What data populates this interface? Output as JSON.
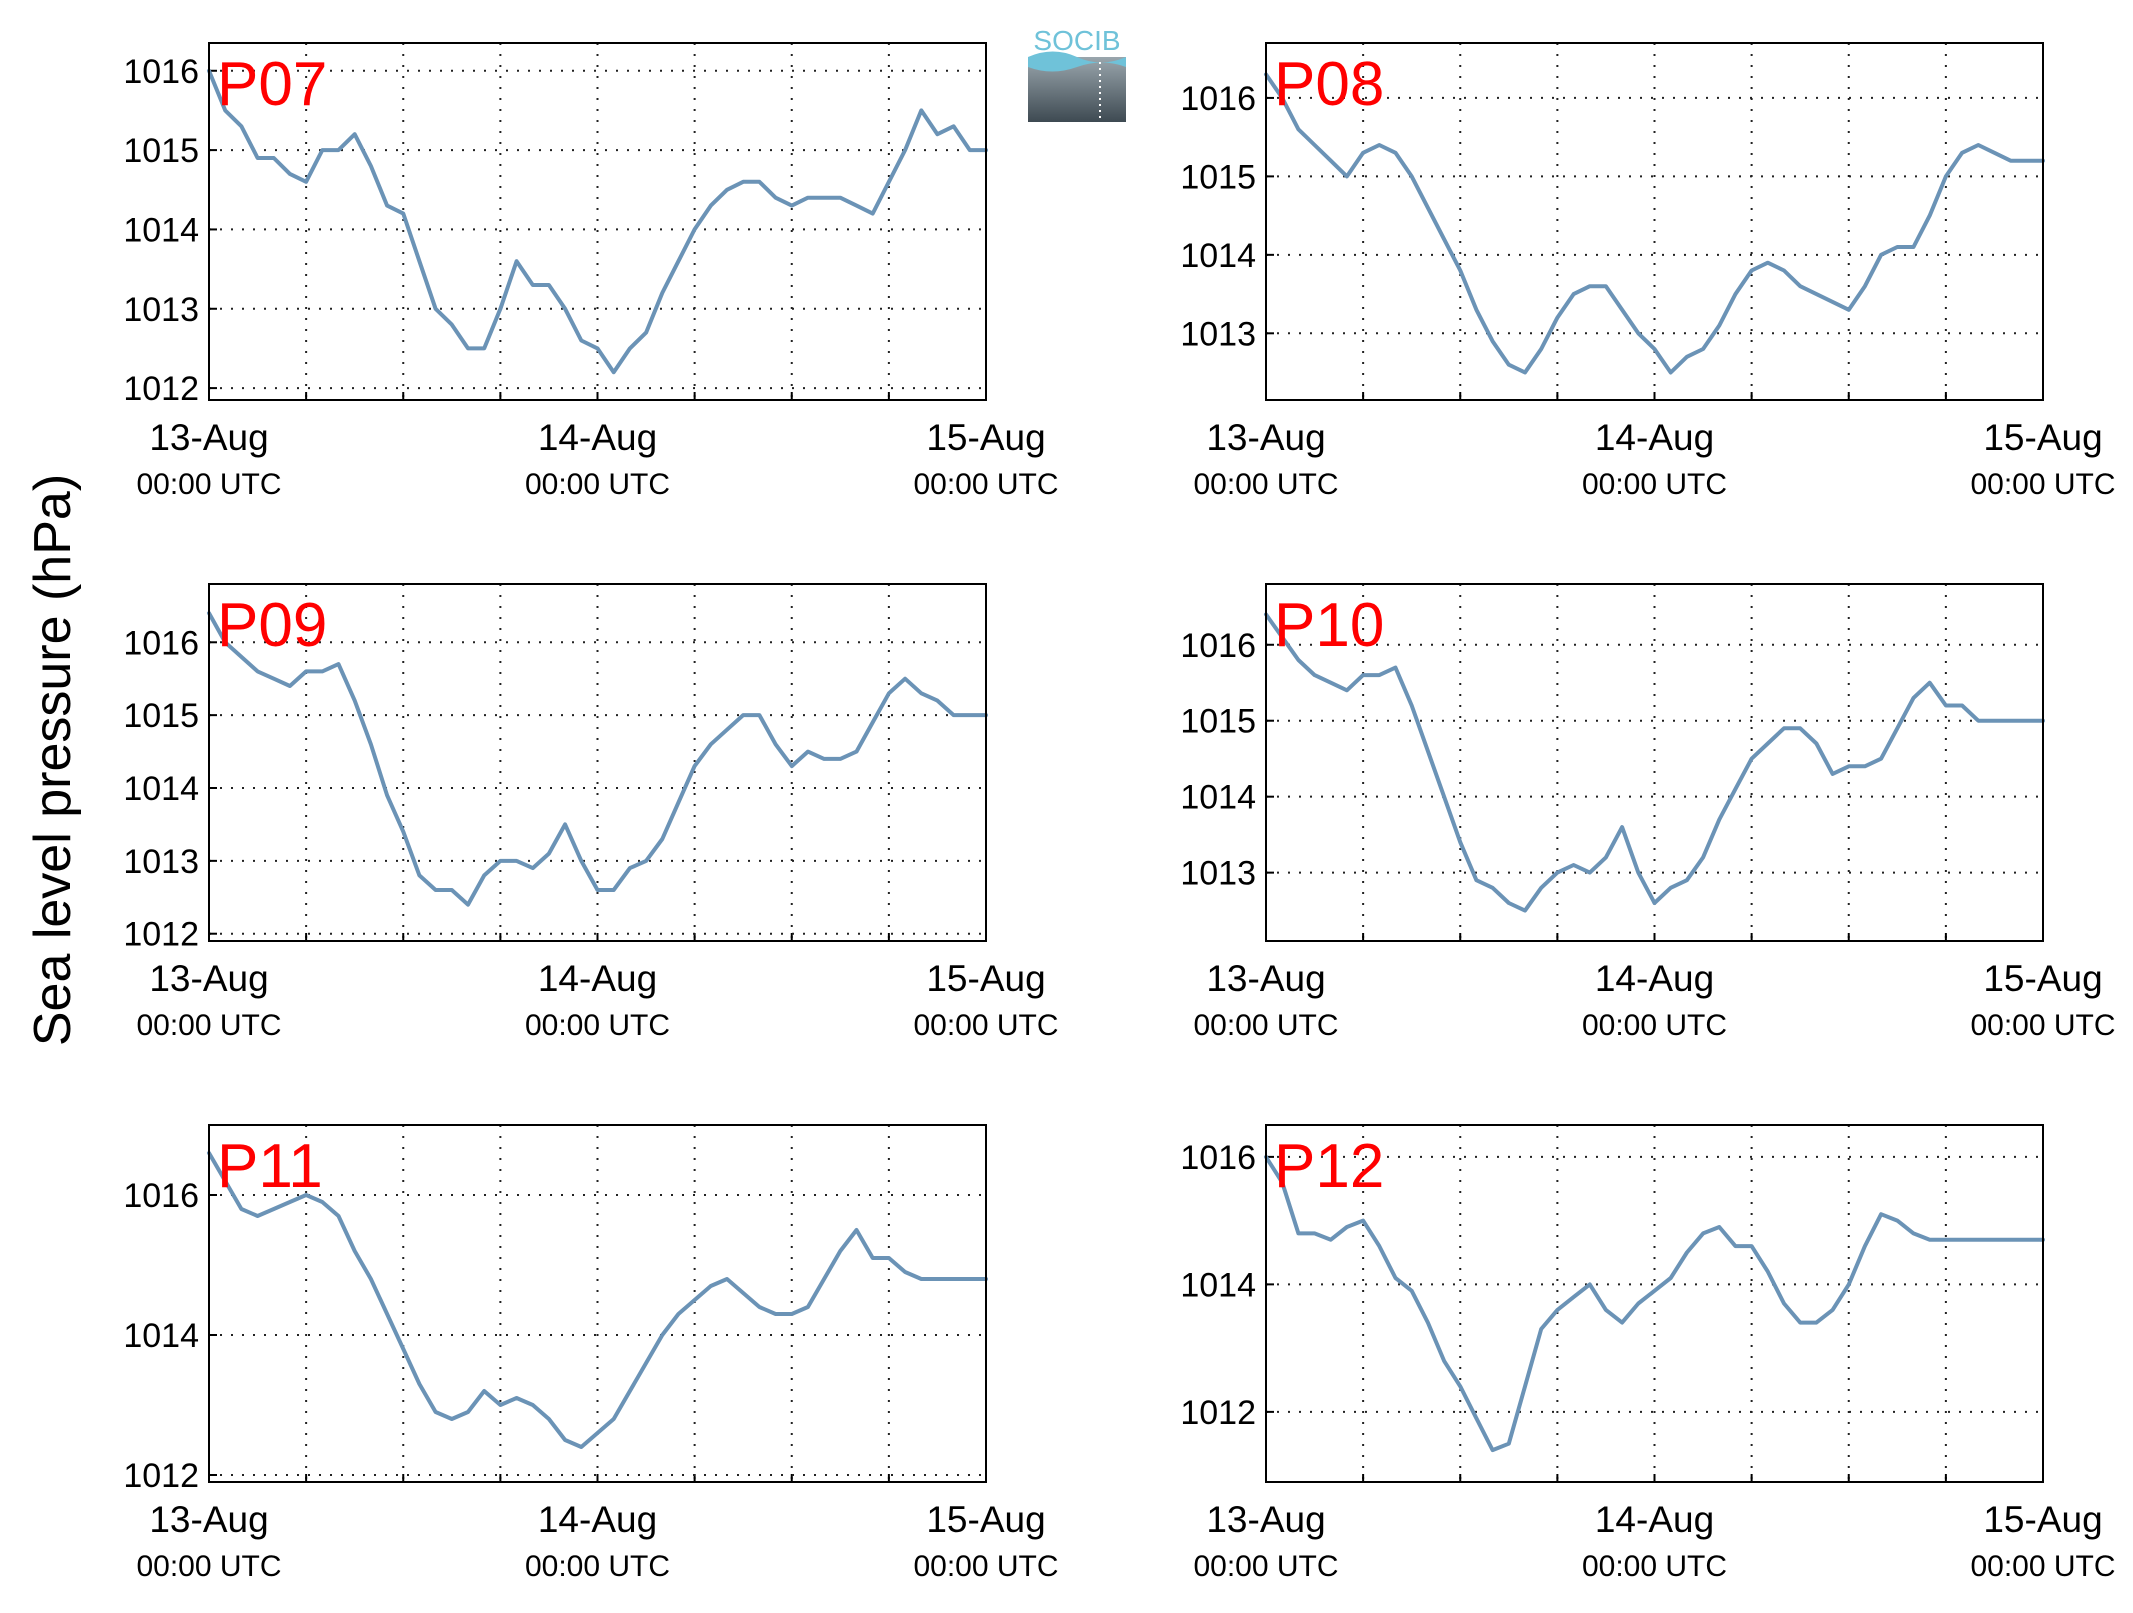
{
  "figure": {
    "ylabel": "Sea level pressure (hPa)",
    "logo_text": "SOCIB",
    "line_color": "#6b93b6",
    "title_color": "#ff0000"
  },
  "chart_data": [
    {
      "type": "line",
      "title": "P07",
      "xlabel": "",
      "ylabel": "Sea level pressure (hPa)",
      "xlim": [
        "13-Aug 00:00 UTC",
        "15-Aug 00:00 UTC"
      ],
      "ylim": [
        1011.85,
        1016.35
      ],
      "yticks": [
        1012,
        1013,
        1014,
        1015,
        1016
      ],
      "xticks": [
        {
          "date": "13-Aug",
          "time": "00:00 UTC"
        },
        {
          "date": "14-Aug",
          "time": "00:00 UTC"
        },
        {
          "date": "15-Aug",
          "time": "00:00 UTC"
        }
      ],
      "grid": true,
      "series": [
        {
          "x_hours": [
            0,
            1,
            2,
            3,
            4,
            5,
            6,
            7,
            8,
            9,
            10,
            11,
            12,
            13,
            14,
            15,
            16,
            17,
            18,
            19,
            20,
            21,
            22,
            23,
            24,
            25,
            26,
            27,
            28,
            29,
            30,
            31,
            32,
            33,
            34,
            35,
            36,
            37,
            38,
            39,
            40,
            41,
            42,
            43,
            44,
            45,
            46,
            47,
            48
          ],
          "values": [
            1016.0,
            1015.5,
            1015.3,
            1014.9,
            1014.9,
            1014.7,
            1014.6,
            1015.0,
            1015.0,
            1015.2,
            1014.8,
            1014.3,
            1014.2,
            1013.6,
            1013.0,
            1012.8,
            1012.5,
            1012.5,
            1013.0,
            1013.6,
            1013.3,
            1013.3,
            1013.0,
            1012.6,
            1012.5,
            1012.2,
            1012.5,
            1012.7,
            1013.2,
            1013.6,
            1014.0,
            1014.3,
            1014.5,
            1014.6,
            1014.6,
            1014.4,
            1014.3,
            1014.4,
            1014.4,
            1014.4,
            1014.3,
            1014.2,
            1014.6,
            1015.0,
            1015.5,
            1015.2,
            1015.3,
            1015.0,
            1015.0
          ]
        }
      ]
    },
    {
      "type": "line",
      "title": "P08",
      "xlabel": "",
      "ylabel": "Sea level pressure (hPa)",
      "xlim": [
        "13-Aug 00:00 UTC",
        "15-Aug 00:00 UTC"
      ],
      "ylim": [
        1012.15,
        1016.7
      ],
      "yticks": [
        1013,
        1014,
        1015,
        1016
      ],
      "xticks": [
        {
          "date": "13-Aug",
          "time": "00:00 UTC"
        },
        {
          "date": "14-Aug",
          "time": "00:00 UTC"
        },
        {
          "date": "15-Aug",
          "time": "00:00 UTC"
        }
      ],
      "grid": true,
      "series": [
        {
          "x_hours": [
            0,
            1,
            2,
            3,
            4,
            5,
            6,
            7,
            8,
            9,
            10,
            11,
            12,
            13,
            14,
            15,
            16,
            17,
            18,
            19,
            20,
            21,
            22,
            23,
            24,
            25,
            26,
            27,
            28,
            29,
            30,
            31,
            32,
            33,
            34,
            35,
            36,
            37,
            38,
            39,
            40,
            41,
            42,
            43,
            44,
            45,
            46,
            47,
            48
          ],
          "values": [
            1016.3,
            1016.0,
            1015.6,
            1015.4,
            1015.2,
            1015.0,
            1015.3,
            1015.4,
            1015.3,
            1015.0,
            1014.6,
            1014.2,
            1013.8,
            1013.3,
            1012.9,
            1012.6,
            1012.5,
            1012.8,
            1013.2,
            1013.5,
            1013.6,
            1013.6,
            1013.3,
            1013.0,
            1012.8,
            1012.5,
            1012.7,
            1012.8,
            1013.1,
            1013.5,
            1013.8,
            1013.9,
            1013.8,
            1013.6,
            1013.5,
            1013.4,
            1013.3,
            1013.6,
            1014.0,
            1014.1,
            1014.1,
            1014.5,
            1015.0,
            1015.3,
            1015.4,
            1015.3,
            1015.2,
            1015.2,
            1015.2
          ]
        }
      ]
    },
    {
      "type": "line",
      "title": "P09",
      "xlabel": "",
      "ylabel": "Sea level pressure (hPa)",
      "xlim": [
        "13-Aug 00:00 UTC",
        "15-Aug 00:00 UTC"
      ],
      "ylim": [
        1011.9,
        1016.8
      ],
      "yticks": [
        1012,
        1013,
        1014,
        1015,
        1016
      ],
      "xticks": [
        {
          "date": "13-Aug",
          "time": "00:00 UTC"
        },
        {
          "date": "14-Aug",
          "time": "00:00 UTC"
        },
        {
          "date": "15-Aug",
          "time": "00:00 UTC"
        }
      ],
      "grid": true,
      "series": [
        {
          "x_hours": [
            0,
            1,
            2,
            3,
            4,
            5,
            6,
            7,
            8,
            9,
            10,
            11,
            12,
            13,
            14,
            15,
            16,
            17,
            18,
            19,
            20,
            21,
            22,
            23,
            24,
            25,
            26,
            27,
            28,
            29,
            30,
            31,
            32,
            33,
            34,
            35,
            36,
            37,
            38,
            39,
            40,
            41,
            42,
            43,
            44,
            45,
            46,
            47,
            48
          ],
          "values": [
            1016.4,
            1016.0,
            1015.8,
            1015.6,
            1015.5,
            1015.4,
            1015.6,
            1015.6,
            1015.7,
            1015.2,
            1014.6,
            1013.9,
            1013.4,
            1012.8,
            1012.6,
            1012.6,
            1012.4,
            1012.8,
            1013.0,
            1013.0,
            1012.9,
            1013.1,
            1013.5,
            1013.0,
            1012.6,
            1012.6,
            1012.9,
            1013.0,
            1013.3,
            1013.8,
            1014.3,
            1014.6,
            1014.8,
            1015.0,
            1015.0,
            1014.6,
            1014.3,
            1014.5,
            1014.4,
            1014.4,
            1014.5,
            1014.9,
            1015.3,
            1015.5,
            1015.3,
            1015.2,
            1015.0,
            1015.0,
            1015.0
          ]
        }
      ]
    },
    {
      "type": "line",
      "title": "P10",
      "xlabel": "",
      "ylabel": "Sea level pressure (hPa)",
      "xlim": [
        "13-Aug 00:00 UTC",
        "15-Aug 00:00 UTC"
      ],
      "ylim": [
        1012.1,
        1016.8
      ],
      "yticks": [
        1013,
        1014,
        1015,
        1016
      ],
      "xticks": [
        {
          "date": "13-Aug",
          "time": "00:00 UTC"
        },
        {
          "date": "14-Aug",
          "time": "00:00 UTC"
        },
        {
          "date": "15-Aug",
          "time": "00:00 UTC"
        }
      ],
      "grid": true,
      "series": [
        {
          "x_hours": [
            0,
            1,
            2,
            3,
            4,
            5,
            6,
            7,
            8,
            9,
            10,
            11,
            12,
            13,
            14,
            15,
            16,
            17,
            18,
            19,
            20,
            21,
            22,
            23,
            24,
            25,
            26,
            27,
            28,
            29,
            30,
            31,
            32,
            33,
            34,
            35,
            36,
            37,
            38,
            39,
            40,
            41,
            42,
            43,
            44,
            45,
            46,
            47,
            48
          ],
          "values": [
            1016.4,
            1016.1,
            1015.8,
            1015.6,
            1015.5,
            1015.4,
            1015.6,
            1015.6,
            1015.7,
            1015.2,
            1014.6,
            1014.0,
            1013.4,
            1012.9,
            1012.8,
            1012.6,
            1012.5,
            1012.8,
            1013.0,
            1013.1,
            1013.0,
            1013.2,
            1013.6,
            1013.0,
            1012.6,
            1012.8,
            1012.9,
            1013.2,
            1013.7,
            1014.1,
            1014.5,
            1014.7,
            1014.9,
            1014.9,
            1014.7,
            1014.3,
            1014.4,
            1014.4,
            1014.5,
            1014.9,
            1015.3,
            1015.5,
            1015.2,
            1015.2,
            1015.0,
            1015.0,
            1015.0,
            1015.0,
            1015.0
          ]
        }
      ]
    },
    {
      "type": "line",
      "title": "P11",
      "xlabel": "",
      "ylabel": "Sea level pressure (hPa)",
      "xlim": [
        "13-Aug 00:00 UTC",
        "15-Aug 00:00 UTC"
      ],
      "ylim": [
        1011.9,
        1017.0
      ],
      "yticks": [
        1012,
        1014,
        1016
      ],
      "xticks": [
        {
          "date": "13-Aug",
          "time": "00:00 UTC"
        },
        {
          "date": "14-Aug",
          "time": "00:00 UTC"
        },
        {
          "date": "15-Aug",
          "time": "00:00 UTC"
        }
      ],
      "grid": true,
      "series": [
        {
          "x_hours": [
            0,
            1,
            2,
            3,
            4,
            5,
            6,
            7,
            8,
            9,
            10,
            11,
            12,
            13,
            14,
            15,
            16,
            17,
            18,
            19,
            20,
            21,
            22,
            23,
            24,
            25,
            26,
            27,
            28,
            29,
            30,
            31,
            32,
            33,
            34,
            35,
            36,
            37,
            38,
            39,
            40,
            41,
            42,
            43,
            44,
            45,
            46,
            47,
            48
          ],
          "values": [
            1016.6,
            1016.2,
            1015.8,
            1015.7,
            1015.8,
            1015.9,
            1016.0,
            1015.9,
            1015.7,
            1015.2,
            1014.8,
            1014.3,
            1013.8,
            1013.3,
            1012.9,
            1012.8,
            1012.9,
            1013.2,
            1013.0,
            1013.1,
            1013.0,
            1012.8,
            1012.5,
            1012.4,
            1012.6,
            1012.8,
            1013.2,
            1013.6,
            1014.0,
            1014.3,
            1014.5,
            1014.7,
            1014.8,
            1014.6,
            1014.4,
            1014.3,
            1014.3,
            1014.4,
            1014.8,
            1015.2,
            1015.5,
            1015.1,
            1015.1,
            1014.9,
            1014.8,
            1014.8,
            1014.8,
            1014.8,
            1014.8
          ]
        }
      ]
    },
    {
      "type": "line",
      "title": "P12",
      "xlabel": "",
      "ylabel": "Sea level pressure (hPa)",
      "xlim": [
        "13-Aug 00:00 UTC",
        "15-Aug 00:00 UTC"
      ],
      "ylim": [
        1010.9,
        1016.5
      ],
      "yticks": [
        1012,
        1014,
        1016
      ],
      "xticks": [
        {
          "date": "13-Aug",
          "time": "00:00 UTC"
        },
        {
          "date": "14-Aug",
          "time": "00:00 UTC"
        },
        {
          "date": "15-Aug",
          "time": "00:00 UTC"
        }
      ],
      "grid": true,
      "series": [
        {
          "x_hours": [
            0,
            1,
            2,
            3,
            4,
            5,
            6,
            7,
            8,
            9,
            10,
            11,
            12,
            13,
            14,
            15,
            16,
            17,
            18,
            19,
            20,
            21,
            22,
            23,
            24,
            25,
            26,
            27,
            28,
            29,
            30,
            31,
            32,
            33,
            34,
            35,
            36,
            37,
            38,
            39,
            40,
            41,
            42,
            43,
            44,
            45,
            46,
            47,
            48
          ],
          "values": [
            1016.0,
            1015.6,
            1014.8,
            1014.8,
            1014.7,
            1014.9,
            1015.0,
            1014.6,
            1014.1,
            1013.9,
            1013.4,
            1012.8,
            1012.4,
            1011.9,
            1011.4,
            1011.5,
            1012.4,
            1013.3,
            1013.6,
            1013.8,
            1014.0,
            1013.6,
            1013.4,
            1013.7,
            1013.9,
            1014.1,
            1014.5,
            1014.8,
            1014.9,
            1014.6,
            1014.6,
            1014.2,
            1013.7,
            1013.4,
            1013.4,
            1013.6,
            1014.0,
            1014.6,
            1015.1,
            1015.0,
            1014.8,
            1014.7,
            1014.7,
            1014.7,
            1014.7,
            1014.7,
            1014.7,
            1014.7,
            1014.7
          ]
        }
      ]
    }
  ]
}
